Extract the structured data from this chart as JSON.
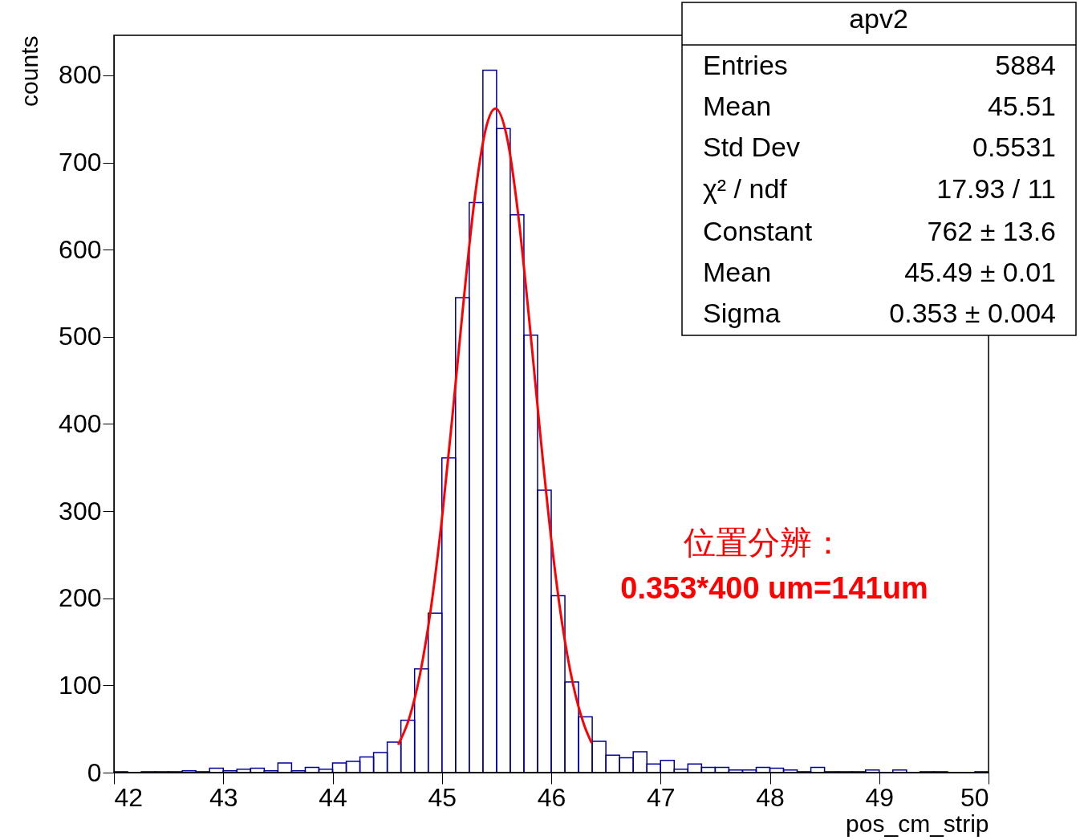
{
  "chart_data": {
    "type": "histogram",
    "title": "apv2",
    "xlabel": "pos_cm_strip",
    "ylabel": "counts",
    "bins": [
      42,
      42.125,
      42.25,
      42.375,
      42.5,
      42.625,
      42.75,
      42.875,
      43,
      43.125,
      43.25,
      43.375,
      43.5,
      43.625,
      43.75,
      43.875,
      44,
      44.125,
      44.25,
      44.375,
      44.5,
      44.625,
      44.75,
      44.875,
      45,
      45.125,
      45.25,
      45.375,
      45.5,
      45.625,
      45.75,
      45.875,
      46,
      46.125,
      46.25,
      46.375,
      46.5,
      46.625,
      46.75,
      46.875,
      47,
      47.125,
      47.25,
      47.375,
      47.5,
      47.625,
      47.75,
      47.875,
      48,
      48.125,
      48.25,
      48.375,
      48.5,
      48.625,
      48.75,
      48.875,
      49,
      49.125,
      49.25,
      49.375,
      49.5,
      49.625,
      49.75,
      49.875,
      50
    ],
    "values": [
      1,
      0,
      1,
      1,
      1,
      2,
      1,
      5,
      2,
      4,
      5,
      2,
      11,
      2,
      6,
      4,
      11,
      13,
      18,
      23,
      35,
      60,
      119,
      183,
      361,
      545,
      654,
      806,
      739,
      640,
      502,
      324,
      203,
      104,
      64,
      36,
      20,
      17,
      24,
      10,
      14,
      4,
      10,
      6,
      6,
      3,
      3,
      6,
      5,
      3,
      1,
      6,
      1,
      1,
      1,
      3,
      0,
      3,
      0,
      1,
      1,
      0,
      0,
      1
    ],
    "color": "#000099",
    "series": [
      {
        "type": "line",
        "color": "#ff0000",
        "x": [
          44.6,
          44.7,
          44.8,
          44.9,
          45.0,
          45.1,
          45.2,
          45.3,
          45.4,
          45.49,
          45.6,
          45.7,
          45.8,
          45.9,
          46.0,
          46.1,
          46.2,
          46.3,
          46.37
        ],
        "values": [
          32,
          62,
          113,
          189,
          291,
          414,
          543,
          659,
          738,
          762,
          726,
          638,
          518,
          388,
          268,
          171,
          101,
          55,
          34
        ]
      }
    ],
    "xlim": [
      42,
      50
    ],
    "xticks": [
      42,
      43,
      44,
      45,
      46,
      47,
      48,
      49,
      50
    ],
    "ylim": [
      0,
      846
    ],
    "yticks": [
      0,
      100,
      200,
      300,
      400,
      500,
      600,
      700,
      800
    ],
    "grid": false,
    "annotations": [
      "Entries",
      "5884",
      "Mean",
      "45.51",
      "Std Dev",
      "0.5531",
      "χ² / ndf",
      "17.93 / 11",
      "Constant",
      "762 ± 13.6",
      "Mean",
      "45.49 ± 0.01",
      "Sigma",
      "0.353 ± 0.004",
      "位置分辨：",
      "0.353*400 um=141um"
    ]
  }
}
